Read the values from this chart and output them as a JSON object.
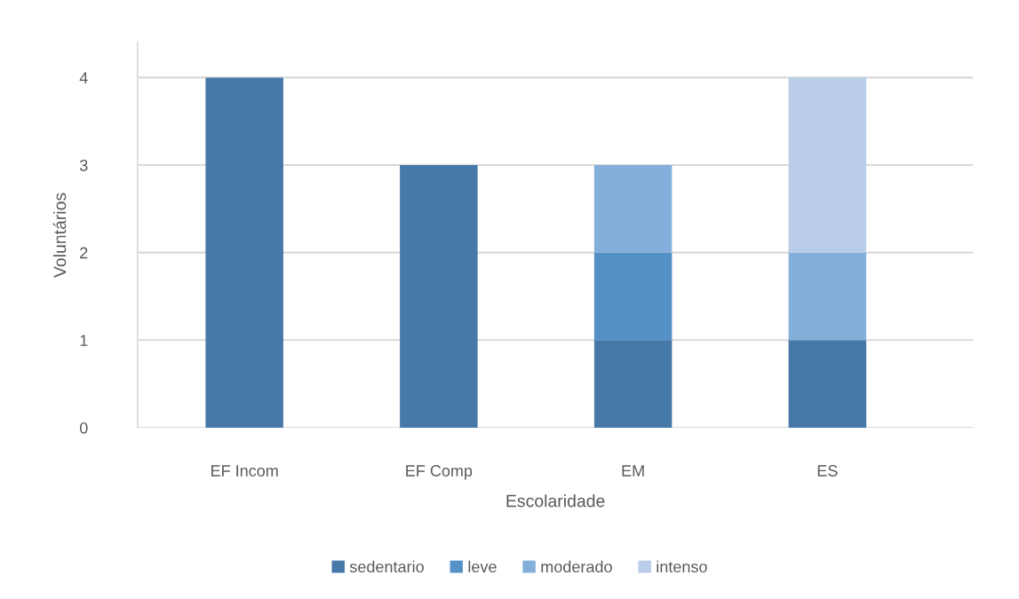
{
  "chart_data": {
    "type": "bar",
    "stacked": true,
    "xlabel": "Escolaridade",
    "ylabel": "Voluntários",
    "categories": [
      "EF Incom",
      "EF Comp",
      "EM",
      "ES"
    ],
    "series": [
      {
        "name": "sedentario",
        "color": "#4678a8",
        "values": [
          4,
          3,
          1,
          1
        ]
      },
      {
        "name": "leve",
        "color": "#5591c7",
        "values": [
          null,
          null,
          1,
          null
        ]
      },
      {
        "name": "moderado",
        "color": "#84afdb",
        "values": [
          null,
          null,
          1,
          1
        ]
      },
      {
        "name": "intenso",
        "color": "#b9cde8",
        "values": [
          null,
          null,
          null,
          2
        ]
      }
    ],
    "ylim": [
      0,
      4.4
    ],
    "yticks": [
      0,
      1,
      2,
      3,
      4
    ],
    "grid": "y",
    "legend": "bottom"
  }
}
